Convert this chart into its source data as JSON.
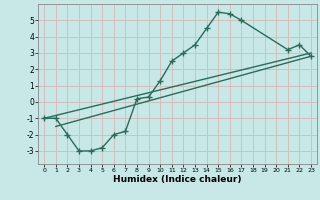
{
  "xlabel": "Humidex (Indice chaleur)",
  "bg_color": "#c8e8e8",
  "grid_color": "#d4b8b8",
  "line_color": "#2a6b5a",
  "xlim": [
    -0.5,
    23.5
  ],
  "ylim": [
    -3.8,
    6.0
  ],
  "yticks": [
    -3,
    -2,
    -1,
    0,
    1,
    2,
    3,
    4,
    5
  ],
  "xticks": [
    0,
    1,
    2,
    3,
    4,
    5,
    6,
    7,
    8,
    9,
    10,
    11,
    12,
    13,
    14,
    15,
    16,
    17,
    18,
    19,
    20,
    21,
    22,
    23
  ],
  "curve1_x": [
    0,
    1,
    2,
    3,
    4,
    5,
    6,
    7,
    8,
    9,
    10,
    11,
    12,
    13,
    14,
    15,
    16,
    17,
    21,
    22,
    23
  ],
  "curve1_y": [
    -1,
    -1,
    -2,
    -3,
    -3,
    -2.8,
    -2,
    -1.8,
    0.2,
    0.3,
    1.3,
    2.5,
    3.0,
    3.5,
    4.5,
    5.5,
    5.4,
    5.0,
    3.2,
    3.5,
    2.8
  ],
  "line2_x": [
    0,
    23
  ],
  "line2_y": [
    -1.0,
    3.0
  ],
  "line3_x": [
    1,
    23
  ],
  "line3_y": [
    -1.5,
    2.8
  ],
  "markersize": 2.5,
  "linewidth": 1.0
}
